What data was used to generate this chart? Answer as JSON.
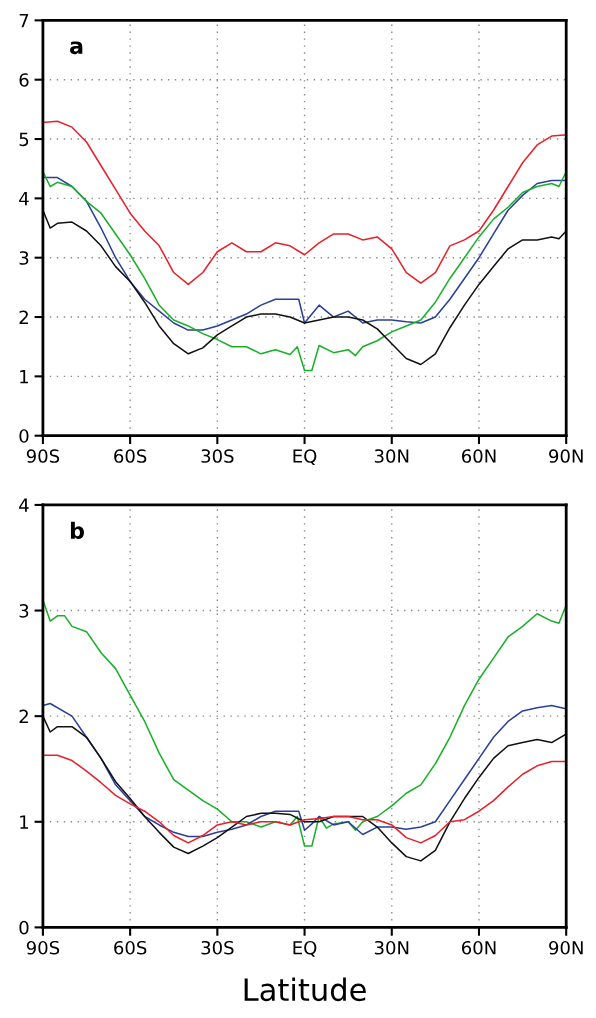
{
  "chart_data": [
    {
      "type": "line",
      "annotations": [
        "a"
      ],
      "xlim": [
        -90,
        90
      ],
      "ylim": [
        0,
        7
      ],
      "yticks": [
        0,
        1,
        2,
        3,
        4,
        5,
        6,
        7
      ],
      "xticks": [
        {
          "value": -90,
          "label": "90S"
        },
        {
          "value": -60,
          "label": "60S"
        },
        {
          "value": -30,
          "label": "30S"
        },
        {
          "value": 0,
          "label": "EQ"
        },
        {
          "value": 30,
          "label": "30N"
        },
        {
          "value": 60,
          "label": "60N"
        },
        {
          "value": 90,
          "label": "90N"
        }
      ],
      "grid": true,
      "line_style": "solid",
      "series": [
        {
          "color": "#e8202a",
          "x": [
            -90,
            -85,
            -80,
            -75,
            -70,
            -65,
            -60,
            -55,
            -50,
            -45,
            -40,
            -35,
            -30,
            -25,
            -20,
            -15,
            -10,
            -5,
            0,
            5,
            10,
            15,
            20,
            25,
            30,
            35,
            40,
            45,
            50,
            55,
            60,
            65,
            70,
            75,
            80,
            85,
            90
          ],
          "values": [
            5.28,
            5.3,
            5.2,
            4.95,
            4.55,
            4.15,
            3.75,
            3.45,
            3.2,
            2.75,
            2.55,
            2.75,
            3.1,
            3.25,
            3.1,
            3.1,
            3.25,
            3.2,
            3.05,
            3.25,
            3.4,
            3.4,
            3.3,
            3.35,
            3.15,
            2.75,
            2.57,
            2.75,
            3.2,
            3.3,
            3.45,
            3.8,
            4.2,
            4.6,
            4.9,
            5.05,
            5.07
          ]
        },
        {
          "color": "#2a3f9a",
          "x": [
            -90,
            -85,
            -80,
            -75,
            -70,
            -65,
            -60,
            -55,
            -50,
            -45,
            -40,
            -35,
            -30,
            -25,
            -20,
            -15,
            -10,
            -5,
            -2,
            0,
            5,
            10,
            15,
            20,
            25,
            30,
            35,
            40,
            45,
            50,
            55,
            60,
            65,
            70,
            75,
            80,
            85,
            90
          ],
          "values": [
            4.35,
            4.35,
            4.2,
            3.95,
            3.5,
            3.0,
            2.6,
            2.3,
            2.1,
            1.9,
            1.78,
            1.78,
            1.85,
            1.95,
            2.05,
            2.2,
            2.3,
            2.3,
            2.3,
            1.9,
            2.2,
            2.0,
            2.1,
            1.9,
            1.95,
            1.95,
            1.92,
            1.9,
            2.0,
            2.3,
            2.65,
            3.0,
            3.4,
            3.8,
            4.05,
            4.25,
            4.3,
            4.3
          ]
        },
        {
          "color": "#18b028",
          "x": [
            -90,
            -87.5,
            -85,
            -80,
            -75,
            -70,
            -65,
            -60,
            -55,
            -50,
            -45,
            -40,
            -35,
            -30,
            -25,
            -20,
            -15,
            -10,
            -5,
            -2.5,
            0,
            2.5,
            5,
            10,
            15,
            17.5,
            20,
            25,
            30,
            35,
            40,
            45,
            50,
            55,
            60,
            65,
            70,
            75,
            80,
            85,
            87.5,
            90
          ],
          "values": [
            4.45,
            4.2,
            4.27,
            4.2,
            3.95,
            3.75,
            3.4,
            3.05,
            2.65,
            2.2,
            1.95,
            1.85,
            1.72,
            1.62,
            1.5,
            1.5,
            1.38,
            1.45,
            1.37,
            1.5,
            1.1,
            1.1,
            1.52,
            1.4,
            1.45,
            1.35,
            1.5,
            1.6,
            1.75,
            1.85,
            1.95,
            2.25,
            2.65,
            3.0,
            3.35,
            3.65,
            3.85,
            4.1,
            4.2,
            4.25,
            4.2,
            4.45
          ]
        },
        {
          "color": "#111111",
          "x": [
            -90,
            -87.5,
            -85,
            -80,
            -75,
            -70,
            -65,
            -60,
            -55,
            -50,
            -45,
            -40,
            -35,
            -30,
            -25,
            -20,
            -15,
            -10,
            -5,
            0,
            5,
            10,
            15,
            20,
            25,
            30,
            35,
            40,
            45,
            50,
            55,
            60,
            65,
            70,
            75,
            80,
            85,
            87.5,
            90
          ],
          "values": [
            3.8,
            3.5,
            3.58,
            3.6,
            3.45,
            3.2,
            2.85,
            2.6,
            2.25,
            1.85,
            1.55,
            1.38,
            1.48,
            1.7,
            1.85,
            2.0,
            2.05,
            2.05,
            2.0,
            1.9,
            1.95,
            2.0,
            2.0,
            1.95,
            1.8,
            1.55,
            1.3,
            1.2,
            1.38,
            1.82,
            2.2,
            2.55,
            2.85,
            3.15,
            3.3,
            3.3,
            3.35,
            3.32,
            3.45
          ]
        }
      ]
    },
    {
      "type": "line",
      "annotations": [
        "b"
      ],
      "xlabel": "Latitude",
      "xlim": [
        -90,
        90
      ],
      "ylim": [
        0,
        4
      ],
      "yticks": [
        0,
        1,
        2,
        3,
        4
      ],
      "xticks": [
        {
          "value": -90,
          "label": "90S"
        },
        {
          "value": -60,
          "label": "60S"
        },
        {
          "value": -30,
          "label": "30S"
        },
        {
          "value": 0,
          "label": "EQ"
        },
        {
          "value": 30,
          "label": "30N"
        },
        {
          "value": 60,
          "label": "60N"
        },
        {
          "value": 90,
          "label": "90N"
        }
      ],
      "grid": true,
      "line_style": "solid",
      "series": [
        {
          "color": "#18b028",
          "x": [
            -90,
            -87.5,
            -85,
            -82.5,
            -80,
            -75,
            -70,
            -65,
            -60,
            -55,
            -50,
            -45,
            -40,
            -35,
            -30,
            -25,
            -20,
            -15,
            -10,
            -5,
            -2.5,
            0,
            2.5,
            5,
            7.5,
            10,
            15,
            17.5,
            20,
            25,
            30,
            35,
            40,
            45,
            50,
            55,
            60,
            65,
            70,
            75,
            80,
            85,
            87.5,
            90
          ],
          "values": [
            3.1,
            2.9,
            2.95,
            2.95,
            2.85,
            2.8,
            2.6,
            2.45,
            2.2,
            1.95,
            1.65,
            1.4,
            1.3,
            1.2,
            1.12,
            1.0,
            1.0,
            0.95,
            1.0,
            0.97,
            1.05,
            0.77,
            0.77,
            1.05,
            0.94,
            0.98,
            1.0,
            0.92,
            1.0,
            1.05,
            1.15,
            1.27,
            1.35,
            1.55,
            1.8,
            2.1,
            2.35,
            2.55,
            2.75,
            2.85,
            2.97,
            2.9,
            2.88,
            3.05
          ]
        },
        {
          "color": "#2a3f9a",
          "x": [
            -90,
            -87.5,
            -80,
            -75,
            -70,
            -65,
            -60,
            -55,
            -50,
            -45,
            -40,
            -35,
            -30,
            -25,
            -20,
            -15,
            -10,
            -5,
            -2,
            0,
            2.5,
            5,
            10,
            15,
            20,
            25,
            30,
            35,
            40,
            45,
            50,
            55,
            60,
            65,
            70,
            75,
            80,
            85,
            90
          ],
          "values": [
            2.1,
            2.12,
            2.0,
            1.8,
            1.6,
            1.35,
            1.2,
            1.05,
            0.97,
            0.9,
            0.86,
            0.86,
            0.9,
            0.93,
            0.97,
            1.05,
            1.1,
            1.1,
            1.1,
            0.92,
            0.98,
            1.05,
            0.97,
            1.0,
            0.88,
            0.95,
            0.95,
            0.93,
            0.95,
            1.0,
            1.2,
            1.4,
            1.6,
            1.8,
            1.95,
            2.05,
            2.08,
            2.1,
            2.07
          ]
        },
        {
          "color": "#111111",
          "x": [
            -90,
            -87.5,
            -85,
            -80,
            -75,
            -70,
            -65,
            -60,
            -55,
            -50,
            -45,
            -40,
            -35,
            -30,
            -25,
            -20,
            -15,
            -10,
            -5,
            0,
            5,
            10,
            15,
            20,
            25,
            30,
            35,
            40,
            45,
            50,
            55,
            60,
            65,
            70,
            75,
            80,
            85,
            90
          ],
          "values": [
            2.0,
            1.85,
            1.9,
            1.9,
            1.8,
            1.6,
            1.38,
            1.22,
            1.05,
            0.9,
            0.76,
            0.7,
            0.77,
            0.85,
            0.95,
            1.05,
            1.08,
            1.08,
            1.07,
            1.0,
            1.0,
            1.05,
            1.05,
            1.05,
            0.95,
            0.8,
            0.67,
            0.63,
            0.73,
            1.0,
            1.22,
            1.42,
            1.6,
            1.72,
            1.75,
            1.78,
            1.75,
            1.83
          ]
        },
        {
          "color": "#e8202a",
          "x": [
            -90,
            -85,
            -80,
            -75,
            -70,
            -65,
            -60,
            -55,
            -50,
            -45,
            -40,
            -35,
            -30,
            -25,
            -20,
            -15,
            -10,
            -5,
            0,
            5,
            10,
            15,
            20,
            25,
            30,
            35,
            40,
            45,
            50,
            55,
            60,
            65,
            70,
            75,
            80,
            85,
            90
          ],
          "values": [
            1.63,
            1.63,
            1.58,
            1.48,
            1.37,
            1.25,
            1.17,
            1.1,
            1.0,
            0.87,
            0.8,
            0.87,
            0.97,
            1.0,
            0.97,
            1.0,
            1.0,
            0.97,
            1.02,
            1.03,
            1.05,
            1.05,
            1.02,
            1.02,
            0.97,
            0.85,
            0.8,
            0.87,
            1.0,
            1.02,
            1.1,
            1.2,
            1.33,
            1.45,
            1.53,
            1.57,
            1.57
          ]
        }
      ]
    }
  ]
}
